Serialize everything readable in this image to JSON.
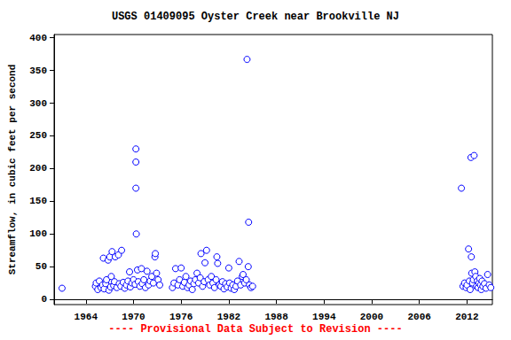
{
  "chart_data": {
    "type": "scatter",
    "title": "USGS 01409095 Oyster Creek near Brookville NJ",
    "y_label": "Streamflow, in cubic feet per second",
    "annotation": "---- Provisional Data Subject to Revision ----",
    "color": "#0000ff",
    "marker": "circle-open",
    "grid": false,
    "xlim": [
      1960,
      2015.2
    ],
    "xticks": [
      1964,
      1970,
      1976,
      1982,
      1988,
      1994,
      2000,
      2006,
      2012
    ],
    "ylim": [
      -8,
      405
    ],
    "yticks": [
      0,
      50,
      100,
      150,
      200,
      250,
      300,
      350,
      400
    ],
    "x": [
      1961.0,
      1965.2,
      1965.3,
      1965.5,
      1965.7,
      1965.9,
      1966.1,
      1966.2,
      1966.3,
      1966.5,
      1966.6,
      1966.8,
      1966.9,
      1967.0,
      1967.1,
      1967.2,
      1967.3,
      1967.5,
      1967.6,
      1967.7,
      1967.9,
      1968.1,
      1968.2,
      1968.4,
      1968.5,
      1968.7,
      1968.9,
      1969.1,
      1969.3,
      1969.5,
      1969.6,
      1969.8,
      1970.0,
      1970.2,
      1970.3,
      1970.3,
      1970.3,
      1970.35,
      1970.5,
      1970.6,
      1970.8,
      1971.0,
      1971.1,
      1971.3,
      1971.5,
      1971.7,
      1971.9,
      1972.1,
      1972.3,
      1972.5,
      1972.7,
      1972.75,
      1972.9,
      1973.1,
      1973.3,
      1974.9,
      1975.1,
      1975.3,
      1975.6,
      1975.8,
      1976.0,
      1976.2,
      1976.4,
      1976.6,
      1976.8,
      1977.0,
      1977.2,
      1977.4,
      1977.6,
      1977.8,
      1978.0,
      1978.2,
      1978.4,
      1978.5,
      1978.7,
      1978.9,
      1979.0,
      1979.2,
      1979.4,
      1979.6,
      1979.8,
      1980.0,
      1980.2,
      1980.4,
      1980.5,
      1980.6,
      1980.8,
      1981.0,
      1981.2,
      1981.4,
      1981.6,
      1981.8,
      1982.0,
      1982.1,
      1982.3,
      1982.5,
      1982.7,
      1982.9,
      1983.1,
      1983.3,
      1983.5,
      1983.7,
      1983.8,
      1984.0,
      1984.2,
      1984.3,
      1984.45,
      1984.5,
      1984.6,
      1984.8,
      1985.0,
      2011.3,
      2011.5,
      2011.7,
      2011.9,
      2012.0,
      2012.2,
      2012.3,
      2012.4,
      2012.5,
      2012.55,
      2012.6,
      2012.7,
      2012.8,
      2012.9,
      2013.0,
      2013.1,
      2013.2,
      2013.3,
      2013.4,
      2013.5,
      2013.6,
      2013.7,
      2013.8,
      2013.9,
      2014.0,
      2014.2,
      2014.4,
      2014.6,
      2014.8,
      2015.0
    ],
    "values": [
      17,
      20,
      25,
      15,
      28,
      18,
      22,
      63,
      16,
      24,
      30,
      60,
      14,
      65,
      19,
      35,
      73,
      21,
      27,
      65,
      18,
      68,
      24,
      20,
      75,
      26,
      17,
      22,
      28,
      42,
      19,
      25,
      30,
      23,
      230,
      210,
      170,
      100,
      45,
      27,
      20,
      47,
      24,
      30,
      18,
      43,
      22,
      28,
      35,
      25,
      65,
      70,
      40,
      30,
      22,
      18,
      25,
      47,
      22,
      30,
      48,
      20,
      26,
      35,
      18,
      22,
      28,
      15,
      24,
      30,
      40,
      25,
      33,
      70,
      20,
      27,
      56,
      75,
      30,
      22,
      35,
      25,
      18,
      30,
      65,
      55,
      22,
      20,
      27,
      16,
      24,
      19,
      48,
      25,
      17,
      22,
      15,
      20,
      28,
      58,
      22,
      35,
      38,
      25,
      30,
      367,
      50,
      118,
      22,
      18,
      20,
      170,
      20,
      25,
      18,
      22,
      77,
      28,
      15,
      217,
      65,
      40,
      25,
      30,
      220,
      42,
      35,
      20,
      28,
      18,
      25,
      32,
      22,
      15,
      28,
      20,
      24,
      17,
      38,
      22,
      18
    ]
  }
}
